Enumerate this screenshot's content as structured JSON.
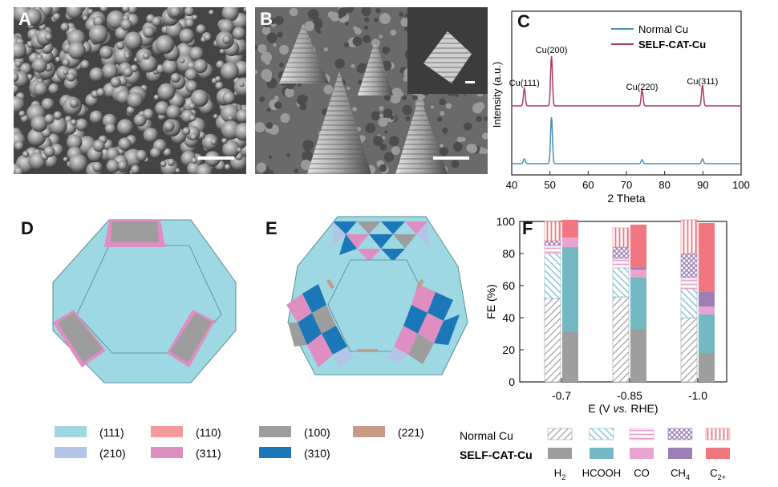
{
  "panels": {
    "A": "A",
    "B": "B",
    "C": "C",
    "D": "D",
    "E": "E",
    "F": "F"
  },
  "chart_c": {
    "type": "line",
    "xlabel": "2 Theta",
    "ylabel": "Intensity (a.u.)",
    "xlim": [
      40,
      100
    ],
    "xticks": [
      "40",
      "50",
      "60",
      "70",
      "80",
      "90",
      "100"
    ],
    "legend": [
      "Normal Cu",
      "SELF-CAT-Cu"
    ],
    "peaks": [
      {
        "label": "Cu(111)",
        "x": 43.3
      },
      {
        "label": "Cu(200)",
        "x": 50.4
      },
      {
        "label": "Cu(220)",
        "x": 74.1
      },
      {
        "label": "Cu(311)",
        "x": 89.9
      }
    ],
    "colors": {
      "normal": "#4a90b8",
      "self": "#b03a6a"
    }
  },
  "chart_f": {
    "type": "bar",
    "xlabel_parts": [
      "E (V ",
      "vs.",
      " RHE)"
    ],
    "ylabel": "FE (%)",
    "ylim": [
      0,
      100
    ],
    "yticks": [
      "0",
      "20",
      "40",
      "60",
      "80",
      "100"
    ],
    "categories": [
      "-0.7",
      "-0.85",
      "-1.0"
    ],
    "products": [
      "H2",
      "HCOOH",
      "CO",
      "CH4",
      "C2+"
    ],
    "colors": {
      "H2": "#9e9e9e",
      "HCOOH": "#74b8c4",
      "CO": "#e7a4cf",
      "CH4": "#9c7fb5",
      "C2+": "#f07680"
    },
    "normal_cu": [
      {
        "H2": 52,
        "HCOOH": 28,
        "CO": 5,
        "CH4": 3,
        "C2+": 12
      },
      {
        "H2": 53,
        "HCOOH": 18,
        "CO": 6,
        "CH4": 7,
        "C2+": 12
      },
      {
        "H2": 40,
        "HCOOH": 18,
        "CO": 7,
        "CH4": 15,
        "C2+": 21
      }
    ],
    "self_cat_cu": [
      {
        "H2": 31,
        "HCOOH": 53,
        "CO": 6,
        "CH4": 0,
        "C2+": 11
      },
      {
        "H2": 33,
        "HCOOH": 32,
        "CO": 5,
        "CH4": 1,
        "C2+": 27
      },
      {
        "H2": 18,
        "HCOOH": 24,
        "CO": 5,
        "CH4": 9,
        "C2+": 43
      }
    ]
  },
  "facet_legend": [
    {
      "label": "(111)",
      "color": "#9ed8e2"
    },
    {
      "label": "(110)",
      "color": "#f49a9a"
    },
    {
      "label": "(100)",
      "color": "#9d9d9d"
    },
    {
      "label": "(221)",
      "color": "#c99a88"
    },
    {
      "label": "(210)",
      "color": "#b3c4e6"
    },
    {
      "label": "(311)",
      "color": "#de8ec1"
    },
    {
      "label": "(310)",
      "color": "#1c77b8"
    }
  ],
  "product_legend": {
    "row1": "Normal Cu",
    "row2": "SELF-CAT-Cu",
    "labels": [
      "H",
      "HCOOH",
      "CO",
      "CH",
      "C"
    ],
    "subs": [
      "2",
      "",
      "",
      "4",
      "2+"
    ]
  }
}
